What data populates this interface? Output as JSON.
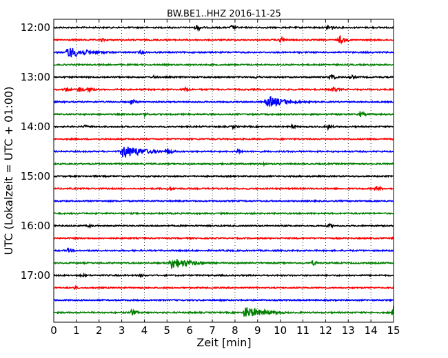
{
  "chart_data": {
    "type": "line",
    "title": "BW.BE1..HHZ 2016-11-25",
    "xlabel": "Zeit  [min]",
    "ylabel": "UTC (Lokalzeit = UTC + 01:00)",
    "xlim": [
      0,
      15
    ],
    "x_ticks": [
      "0",
      "1",
      "2",
      "3",
      "4",
      "5",
      "6",
      "7",
      "8",
      "9",
      "10",
      "11",
      "12",
      "13",
      "14",
      "15"
    ],
    "y_tick_labels": [
      "12:00",
      "13:00",
      "14:00",
      "15:00",
      "16:00",
      "17:00"
    ],
    "grid": "vertical dotted",
    "row_interval_min": 15,
    "colors": [
      "#000000",
      "#ff0000",
      "#0000ff",
      "#008000"
    ],
    "series": [
      {
        "start": "12:00",
        "color": "#000000",
        "events": [
          [
            6.3,
            5
          ],
          [
            7.8,
            4
          ],
          [
            12.1,
            5
          ]
        ]
      },
      {
        "start": "12:15",
        "color": "#ff0000",
        "events": [
          [
            2.1,
            3
          ],
          [
            10.0,
            5
          ],
          [
            12.6,
            7
          ]
        ]
      },
      {
        "start": "12:30",
        "color": "#0000ff",
        "events": [
          [
            0.6,
            9
          ],
          [
            3.8,
            4
          ]
        ]
      },
      {
        "start": "12:45",
        "color": "#008000",
        "events": []
      },
      {
        "start": "13:00",
        "color": "#000000",
        "events": [
          [
            4.4,
            3
          ],
          [
            8.9,
            3
          ],
          [
            12.2,
            6
          ],
          [
            13.1,
            4
          ]
        ]
      },
      {
        "start": "13:15",
        "color": "#ff0000",
        "events": [
          [
            0.5,
            4
          ],
          [
            1.1,
            5
          ],
          [
            1.5,
            5
          ],
          [
            5.8,
            4
          ],
          [
            12.3,
            5
          ]
        ]
      },
      {
        "start": "13:30",
        "color": "#0000ff",
        "events": [
          [
            3.4,
            5
          ],
          [
            9.4,
            9
          ]
        ]
      },
      {
        "start": "13:45",
        "color": "#008000",
        "events": [
          [
            4.0,
            3
          ],
          [
            13.5,
            5
          ]
        ]
      },
      {
        "start": "14:00",
        "color": "#000000",
        "events": [
          [
            1.3,
            3
          ],
          [
            7.9,
            3
          ],
          [
            10.5,
            3
          ],
          [
            12.1,
            4
          ]
        ]
      },
      {
        "start": "14:15",
        "color": "#ff0000",
        "events": []
      },
      {
        "start": "14:30",
        "color": "#0000ff",
        "events": [
          [
            3.0,
            11
          ],
          [
            5.0,
            6
          ],
          [
            8.1,
            5
          ]
        ]
      },
      {
        "start": "14:45",
        "color": "#008000",
        "events": [
          [
            9.2,
            3
          ]
        ]
      },
      {
        "start": "15:00",
        "color": "#000000",
        "events": []
      },
      {
        "start": "15:15",
        "color": "#ff0000",
        "events": [
          [
            5.1,
            4
          ],
          [
            14.2,
            5
          ]
        ]
      },
      {
        "start": "15:30",
        "color": "#0000ff",
        "events": []
      },
      {
        "start": "15:45",
        "color": "#008000",
        "events": []
      },
      {
        "start": "16:00",
        "color": "#000000",
        "events": [
          [
            1.5,
            3
          ],
          [
            12.1,
            4
          ]
        ]
      },
      {
        "start": "16:15",
        "color": "#ff0000",
        "events": []
      },
      {
        "start": "16:30",
        "color": "#0000ff",
        "events": [
          [
            0.6,
            4
          ]
        ]
      },
      {
        "start": "16:45",
        "color": "#008000",
        "events": [
          [
            5.2,
            9
          ],
          [
            11.4,
            4
          ]
        ]
      },
      {
        "start": "17:00",
        "color": "#000000",
        "events": [
          [
            1.2,
            3
          ],
          [
            3.8,
            3
          ]
        ]
      },
      {
        "start": "17:15",
        "color": "#ff0000",
        "events": [
          [
            0.9,
            3
          ]
        ]
      },
      {
        "start": "17:30",
        "color": "#0000ff",
        "events": []
      },
      {
        "start": "17:45",
        "color": "#008000",
        "events": [
          [
            3.4,
            6
          ],
          [
            8.4,
            9
          ],
          [
            15.0,
            12
          ]
        ]
      }
    ]
  }
}
